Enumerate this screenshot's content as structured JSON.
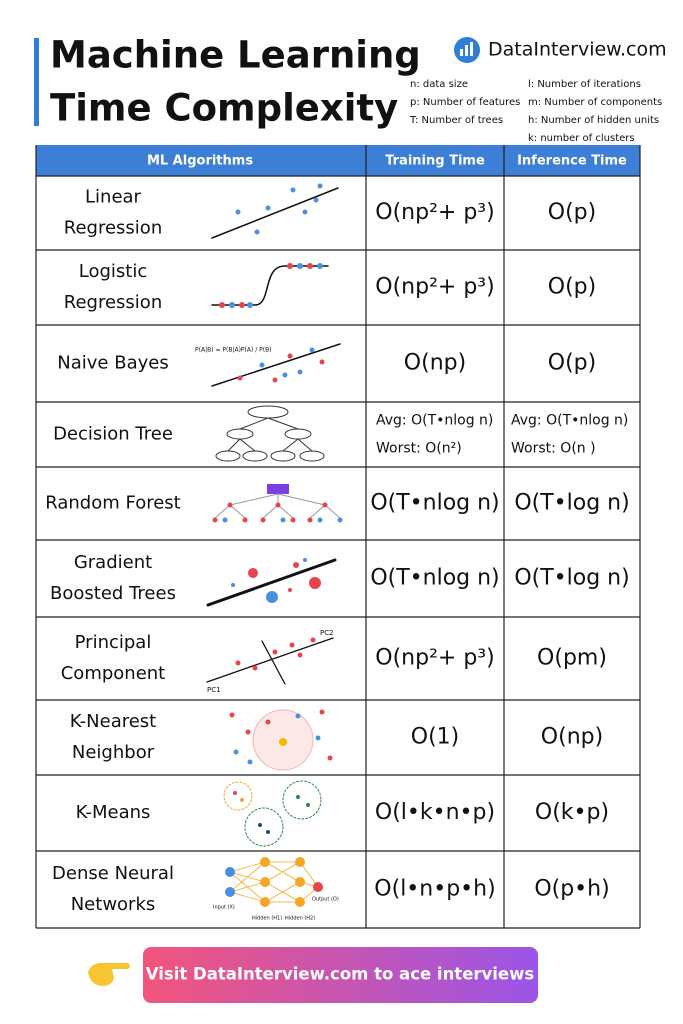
{
  "header": {
    "title": [
      "Machine Learning",
      "Time Complexity"
    ],
    "brand": "DataInterview.com",
    "notes": [
      [
        "n: data size",
        "p: Number of features",
        "T: Number of trees"
      ],
      [
        "l: Number of iterations",
        "m: Number of components",
        "h: Number of hidden units",
        "k: number of clusters"
      ]
    ]
  },
  "table": {
    "columns": [
      "ML Algorithms",
      "Training Time",
      "Inference Time"
    ],
    "rows": [
      {
        "name": [
          "Linear",
          "Regression"
        ],
        "training": [
          "O(np²+ p³)"
        ],
        "inference": [
          "O(p)"
        ]
      },
      {
        "name": [
          "Logistic",
          "Regression"
        ],
        "training": [
          "O(np²+ p³)"
        ],
        "inference": [
          "O(p)"
        ]
      },
      {
        "name": [
          "Naive Bayes"
        ],
        "training": [
          "O(np)"
        ],
        "inference": [
          "O(p)"
        ]
      },
      {
        "name": [
          "Decision Tree"
        ],
        "training": [
          "Avg: O(T•nlog n)",
          "Worst: O(n²)"
        ],
        "inference": [
          "Avg: O(T•nlog n)",
          "Worst: O(n )"
        ]
      },
      {
        "name": [
          "Random Forest"
        ],
        "training": [
          "O(T•nlog n)"
        ],
        "inference": [
          "O(T•log n)"
        ]
      },
      {
        "name": [
          "Gradient",
          "Boosted Trees"
        ],
        "training": [
          "O(T•nlog n)"
        ],
        "inference": [
          "O(T•log n)"
        ]
      },
      {
        "name": [
          "Principal",
          "Component"
        ],
        "training": [
          "O(np²+ p³)"
        ],
        "inference": [
          "O(pm)"
        ]
      },
      {
        "name": [
          "K-Nearest",
          "Neighbor"
        ],
        "training": [
          "O(1)"
        ],
        "inference": [
          "O(np)"
        ]
      },
      {
        "name": [
          "K-Means"
        ],
        "training": [
          "O(l•k•n•p)"
        ],
        "inference": [
          "O(k•p)"
        ]
      },
      {
        "name": [
          "Dense Neural",
          "Networks"
        ],
        "training": [
          "O(l•n•p•h)"
        ],
        "inference": [
          "O(p•h)"
        ]
      }
    ]
  },
  "illustrations": {
    "naive_bayes": "P(A|B) = P(B|A)P(A) / P(B)",
    "pca": [
      "PC1",
      "PC2"
    ],
    "network": [
      "Input (X)",
      "Hidden (H1)",
      "Hidden (H2)",
      "Output (O)"
    ]
  },
  "cta": "Visit DataInterview.com to ace interviews"
}
